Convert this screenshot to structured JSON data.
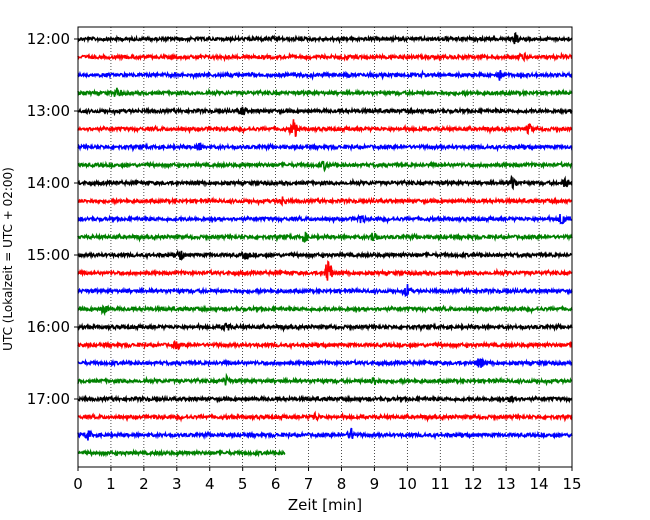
{
  "chart_data": {
    "type": "line",
    "title": "",
    "xlabel": "Zeit  [min]",
    "ylabel": "UTC (Lokalzeit = UTC + 02:00)",
    "xlim": [
      0,
      15
    ],
    "x_ticks": [
      0,
      1,
      2,
      3,
      4,
      5,
      6,
      7,
      8,
      9,
      10,
      11,
      12,
      13,
      14,
      15
    ],
    "x_tick_labels": [
      "0",
      "1",
      "2",
      "3",
      "4",
      "5",
      "6",
      "7",
      "8",
      "9",
      "10",
      "11",
      "12",
      "13",
      "14",
      "15"
    ],
    "y_tick_labels": [
      "12:00",
      "13:00",
      "14:00",
      "15:00",
      "16:00",
      "17:00"
    ],
    "x_grid": true,
    "y_grid": false,
    "traces_per_hour": 4,
    "trace_colors": [
      "#000000",
      "#ff0000",
      "#0000ff",
      "#008000"
    ],
    "traces": [
      {
        "start": "12:00",
        "color": "#000000",
        "end_min": 15,
        "events": [
          {
            "t": 13.3,
            "amp": 1.6
          }
        ]
      },
      {
        "start": "12:15",
        "color": "#ff0000",
        "end_min": 15,
        "events": [
          {
            "t": 13.5,
            "amp": 1.2
          }
        ]
      },
      {
        "start": "12:30",
        "color": "#0000ff",
        "end_min": 15,
        "events": [
          {
            "t": 12.8,
            "amp": 1.3
          }
        ]
      },
      {
        "start": "12:45",
        "color": "#008000",
        "end_min": 15,
        "events": [
          {
            "t": 1.2,
            "amp": 1.3
          }
        ]
      },
      {
        "start": "13:00",
        "color": "#000000",
        "end_min": 15,
        "events": [
          {
            "t": 5.0,
            "amp": 1.2
          }
        ]
      },
      {
        "start": "13:15",
        "color": "#ff0000",
        "end_min": 15,
        "events": [
          {
            "t": 6.55,
            "amp": 3.2
          },
          {
            "t": 13.7,
            "amp": 1.4
          }
        ]
      },
      {
        "start": "13:30",
        "color": "#0000ff",
        "end_min": 15,
        "events": [
          {
            "t": 3.7,
            "amp": 1.2
          }
        ]
      },
      {
        "start": "13:45",
        "color": "#008000",
        "end_min": 15,
        "events": [
          {
            "t": 7.5,
            "amp": 1.3
          }
        ]
      },
      {
        "start": "14:00",
        "color": "#000000",
        "end_min": 15,
        "events": [
          {
            "t": 13.2,
            "amp": 2.0
          },
          {
            "t": 14.8,
            "amp": 1.4
          }
        ]
      },
      {
        "start": "14:15",
        "color": "#ff0000",
        "end_min": 15,
        "events": [
          {
            "t": 6.2,
            "amp": 1.3
          }
        ]
      },
      {
        "start": "14:30",
        "color": "#0000ff",
        "end_min": 15,
        "events": [
          {
            "t": 8.6,
            "amp": 1.3
          },
          {
            "t": 14.7,
            "amp": 2.0
          }
        ]
      },
      {
        "start": "14:45",
        "color": "#008000",
        "end_min": 15,
        "events": [
          {
            "t": 6.9,
            "amp": 1.2
          },
          {
            "t": 9.0,
            "amp": 2.0
          }
        ]
      },
      {
        "start": "15:00",
        "color": "#000000",
        "end_min": 15,
        "events": [
          {
            "t": 3.1,
            "amp": 1.5
          },
          {
            "t": 5.1,
            "amp": 1.3
          }
        ]
      },
      {
        "start": "15:15",
        "color": "#ff0000",
        "end_min": 15,
        "events": [
          {
            "t": 7.6,
            "amp": 5.0
          }
        ]
      },
      {
        "start": "15:30",
        "color": "#0000ff",
        "end_min": 15,
        "events": [
          {
            "t": 10.0,
            "amp": 1.8
          }
        ]
      },
      {
        "start": "15:45",
        "color": "#008000",
        "end_min": 15,
        "events": [
          {
            "t": 0.8,
            "amp": 1.2
          }
        ]
      },
      {
        "start": "16:00",
        "color": "#000000",
        "end_min": 15,
        "events": [
          {
            "t": 4.5,
            "amp": 1.2
          }
        ]
      },
      {
        "start": "16:15",
        "color": "#ff0000",
        "end_min": 15,
        "events": [
          {
            "t": 3.0,
            "amp": 1.2
          }
        ]
      },
      {
        "start": "16:30",
        "color": "#0000ff",
        "end_min": 15,
        "events": [
          {
            "t": 12.2,
            "amp": 1.6
          }
        ]
      },
      {
        "start": "16:45",
        "color": "#008000",
        "end_min": 15,
        "events": [
          {
            "t": 4.5,
            "amp": 1.4
          },
          {
            "t": 9.0,
            "amp": 1.2
          }
        ]
      },
      {
        "start": "17:00",
        "color": "#000000",
        "end_min": 15,
        "events": [
          {
            "t": 13.2,
            "amp": 1.3
          }
        ]
      },
      {
        "start": "17:15",
        "color": "#ff0000",
        "end_min": 15,
        "events": [
          {
            "t": 7.2,
            "amp": 1.1
          }
        ]
      },
      {
        "start": "17:30",
        "color": "#0000ff",
        "end_min": 15,
        "events": [
          {
            "t": 0.3,
            "amp": 1.3
          },
          {
            "t": 8.3,
            "amp": 1.8
          }
        ]
      },
      {
        "start": "17:45",
        "color": "#008000",
        "end_min": 6.3,
        "events": []
      }
    ]
  }
}
